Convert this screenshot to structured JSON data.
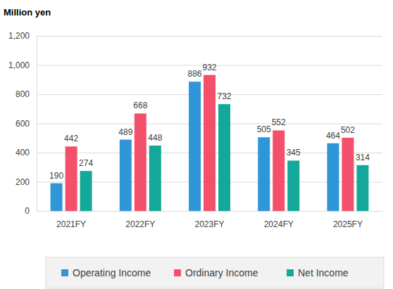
{
  "chart_data": {
    "type": "bar",
    "y_label": "Million yen",
    "categories": [
      "2021FY",
      "2022FY",
      "2023FY",
      "2024FY",
      "2025FY"
    ],
    "series": [
      {
        "name": "Operating Income",
        "color": "#2f96d8",
        "values": [
          190,
          489,
          886,
          505,
          464
        ]
      },
      {
        "name": "Ordinary Income",
        "color": "#f4506b",
        "values": [
          442,
          668,
          932,
          552,
          502
        ]
      },
      {
        "name": "Net Income",
        "color": "#14a89a",
        "values": [
          274,
          448,
          732,
          345,
          314
        ]
      }
    ],
    "ylim": [
      0,
      1200
    ],
    "yticks": [
      0,
      200,
      400,
      600,
      800,
      {
        "value": 1000,
        "label": "1,000"
      },
      {
        "value": 1200,
        "label": "1,200"
      }
    ],
    "grid": true,
    "data_labels": true,
    "legend": "bottom"
  }
}
